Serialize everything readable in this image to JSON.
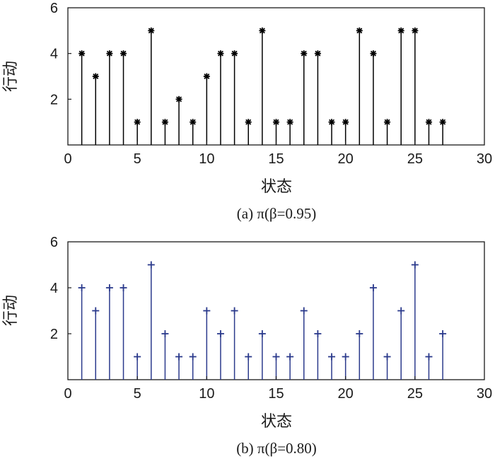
{
  "chart_data": [
    {
      "type": "stem",
      "caption": "(a) π(β=0.95)",
      "xlabel": "状态",
      "ylabel": "行动",
      "xlim": [
        0,
        30
      ],
      "ylim": [
        0,
        6
      ],
      "xticks": [
        0,
        5,
        10,
        15,
        20,
        25,
        30
      ],
      "yticks": [
        2,
        4,
        6
      ],
      "marker": "star",
      "color": "#000000",
      "x": [
        1,
        2,
        3,
        4,
        5,
        6,
        7,
        8,
        9,
        10,
        11,
        12,
        13,
        14,
        15,
        16,
        17,
        18,
        19,
        20,
        21,
        22,
        23,
        24,
        25,
        26,
        27
      ],
      "values": [
        4,
        3,
        4,
        4,
        1,
        5,
        1,
        2,
        1,
        3,
        4,
        4,
        1,
        5,
        1,
        1,
        4,
        4,
        1,
        1,
        5,
        4,
        1,
        5,
        5,
        1,
        1
      ]
    },
    {
      "type": "stem",
      "caption": "(b) π(β=0.80)",
      "xlabel": "状态",
      "ylabel": "行动",
      "xlim": [
        0,
        30
      ],
      "ylim": [
        0,
        6
      ],
      "xticks": [
        0,
        5,
        10,
        15,
        20,
        25,
        30
      ],
      "yticks": [
        2,
        4,
        6
      ],
      "marker": "plus",
      "color": "#2b3a8c",
      "x": [
        1,
        2,
        3,
        4,
        5,
        6,
        7,
        8,
        9,
        10,
        11,
        12,
        13,
        14,
        15,
        16,
        17,
        18,
        19,
        20,
        21,
        22,
        23,
        24,
        25,
        26,
        27
      ],
      "values": [
        4,
        3,
        4,
        4,
        1,
        5,
        2,
        1,
        1,
        3,
        2,
        3,
        1,
        2,
        1,
        1,
        3,
        2,
        1,
        1,
        2,
        4,
        1,
        3,
        5,
        1,
        2
      ]
    }
  ]
}
